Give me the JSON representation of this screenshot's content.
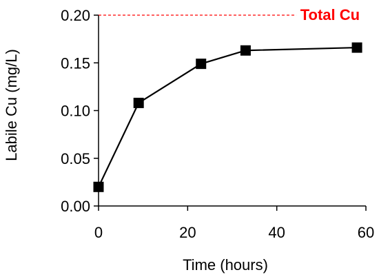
{
  "chart_data": {
    "type": "line",
    "title": "",
    "xlabel": "Time (hours)",
    "ylabel": "Labile Cu (mg/L)",
    "xlim": [
      0,
      60
    ],
    "ylim": [
      0,
      0.2
    ],
    "x_ticks": [
      0,
      20,
      40,
      60
    ],
    "y_ticks": [
      0,
      0.05,
      0.1,
      0.15,
      0.2
    ],
    "x_tick_labels": [
      "0",
      "20",
      "40",
      "60"
    ],
    "y_tick_labels": [
      "0.00",
      "0.05",
      "0.10",
      "0.15",
      "0.20"
    ],
    "grid": false,
    "series": [
      {
        "x": [
          0,
          9,
          23,
          33,
          58
        ],
        "y": [
          0.02,
          0.108,
          0.149,
          0.163,
          0.166
        ],
        "color": "#000000",
        "marker": "square"
      }
    ],
    "reference_line": {
      "label": "Total Cu",
      "y": 0.2,
      "x_start": 0,
      "x_end": 58,
      "color": "#ff0000",
      "style": "dashed"
    }
  }
}
